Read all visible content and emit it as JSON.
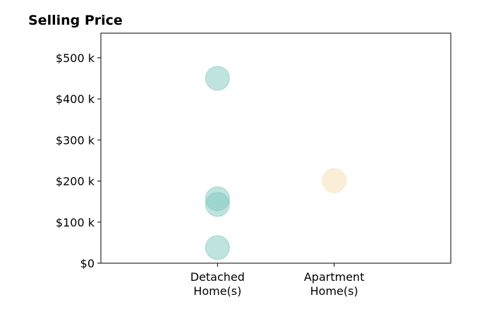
{
  "chart_data": {
    "type": "scatter",
    "title": "Selling Price",
    "xlabel": "",
    "ylabel": "",
    "categories": [
      "Detached\nHome(s)",
      "Apartment\nHome(s)"
    ],
    "xlim": [
      0,
      3
    ],
    "ylim": [
      0,
      560000
    ],
    "y_ticks": [
      {
        "value": 0,
        "label": "$0"
      },
      {
        "value": 100000,
        "label": "$100 k"
      },
      {
        "value": 200000,
        "label": "$200 k"
      },
      {
        "value": 300000,
        "label": "$300 k"
      },
      {
        "value": 400000,
        "label": "$400 k"
      },
      {
        "value": 500000,
        "label": "$500 k"
      }
    ],
    "grid": false,
    "series": [
      {
        "category_index": 0,
        "color": "#7fc8bf",
        "values": [
          450000,
          157000,
          143000,
          38000
        ]
      },
      {
        "category_index": 1,
        "color": "#f5deaf",
        "values": [
          201000
        ]
      }
    ]
  }
}
